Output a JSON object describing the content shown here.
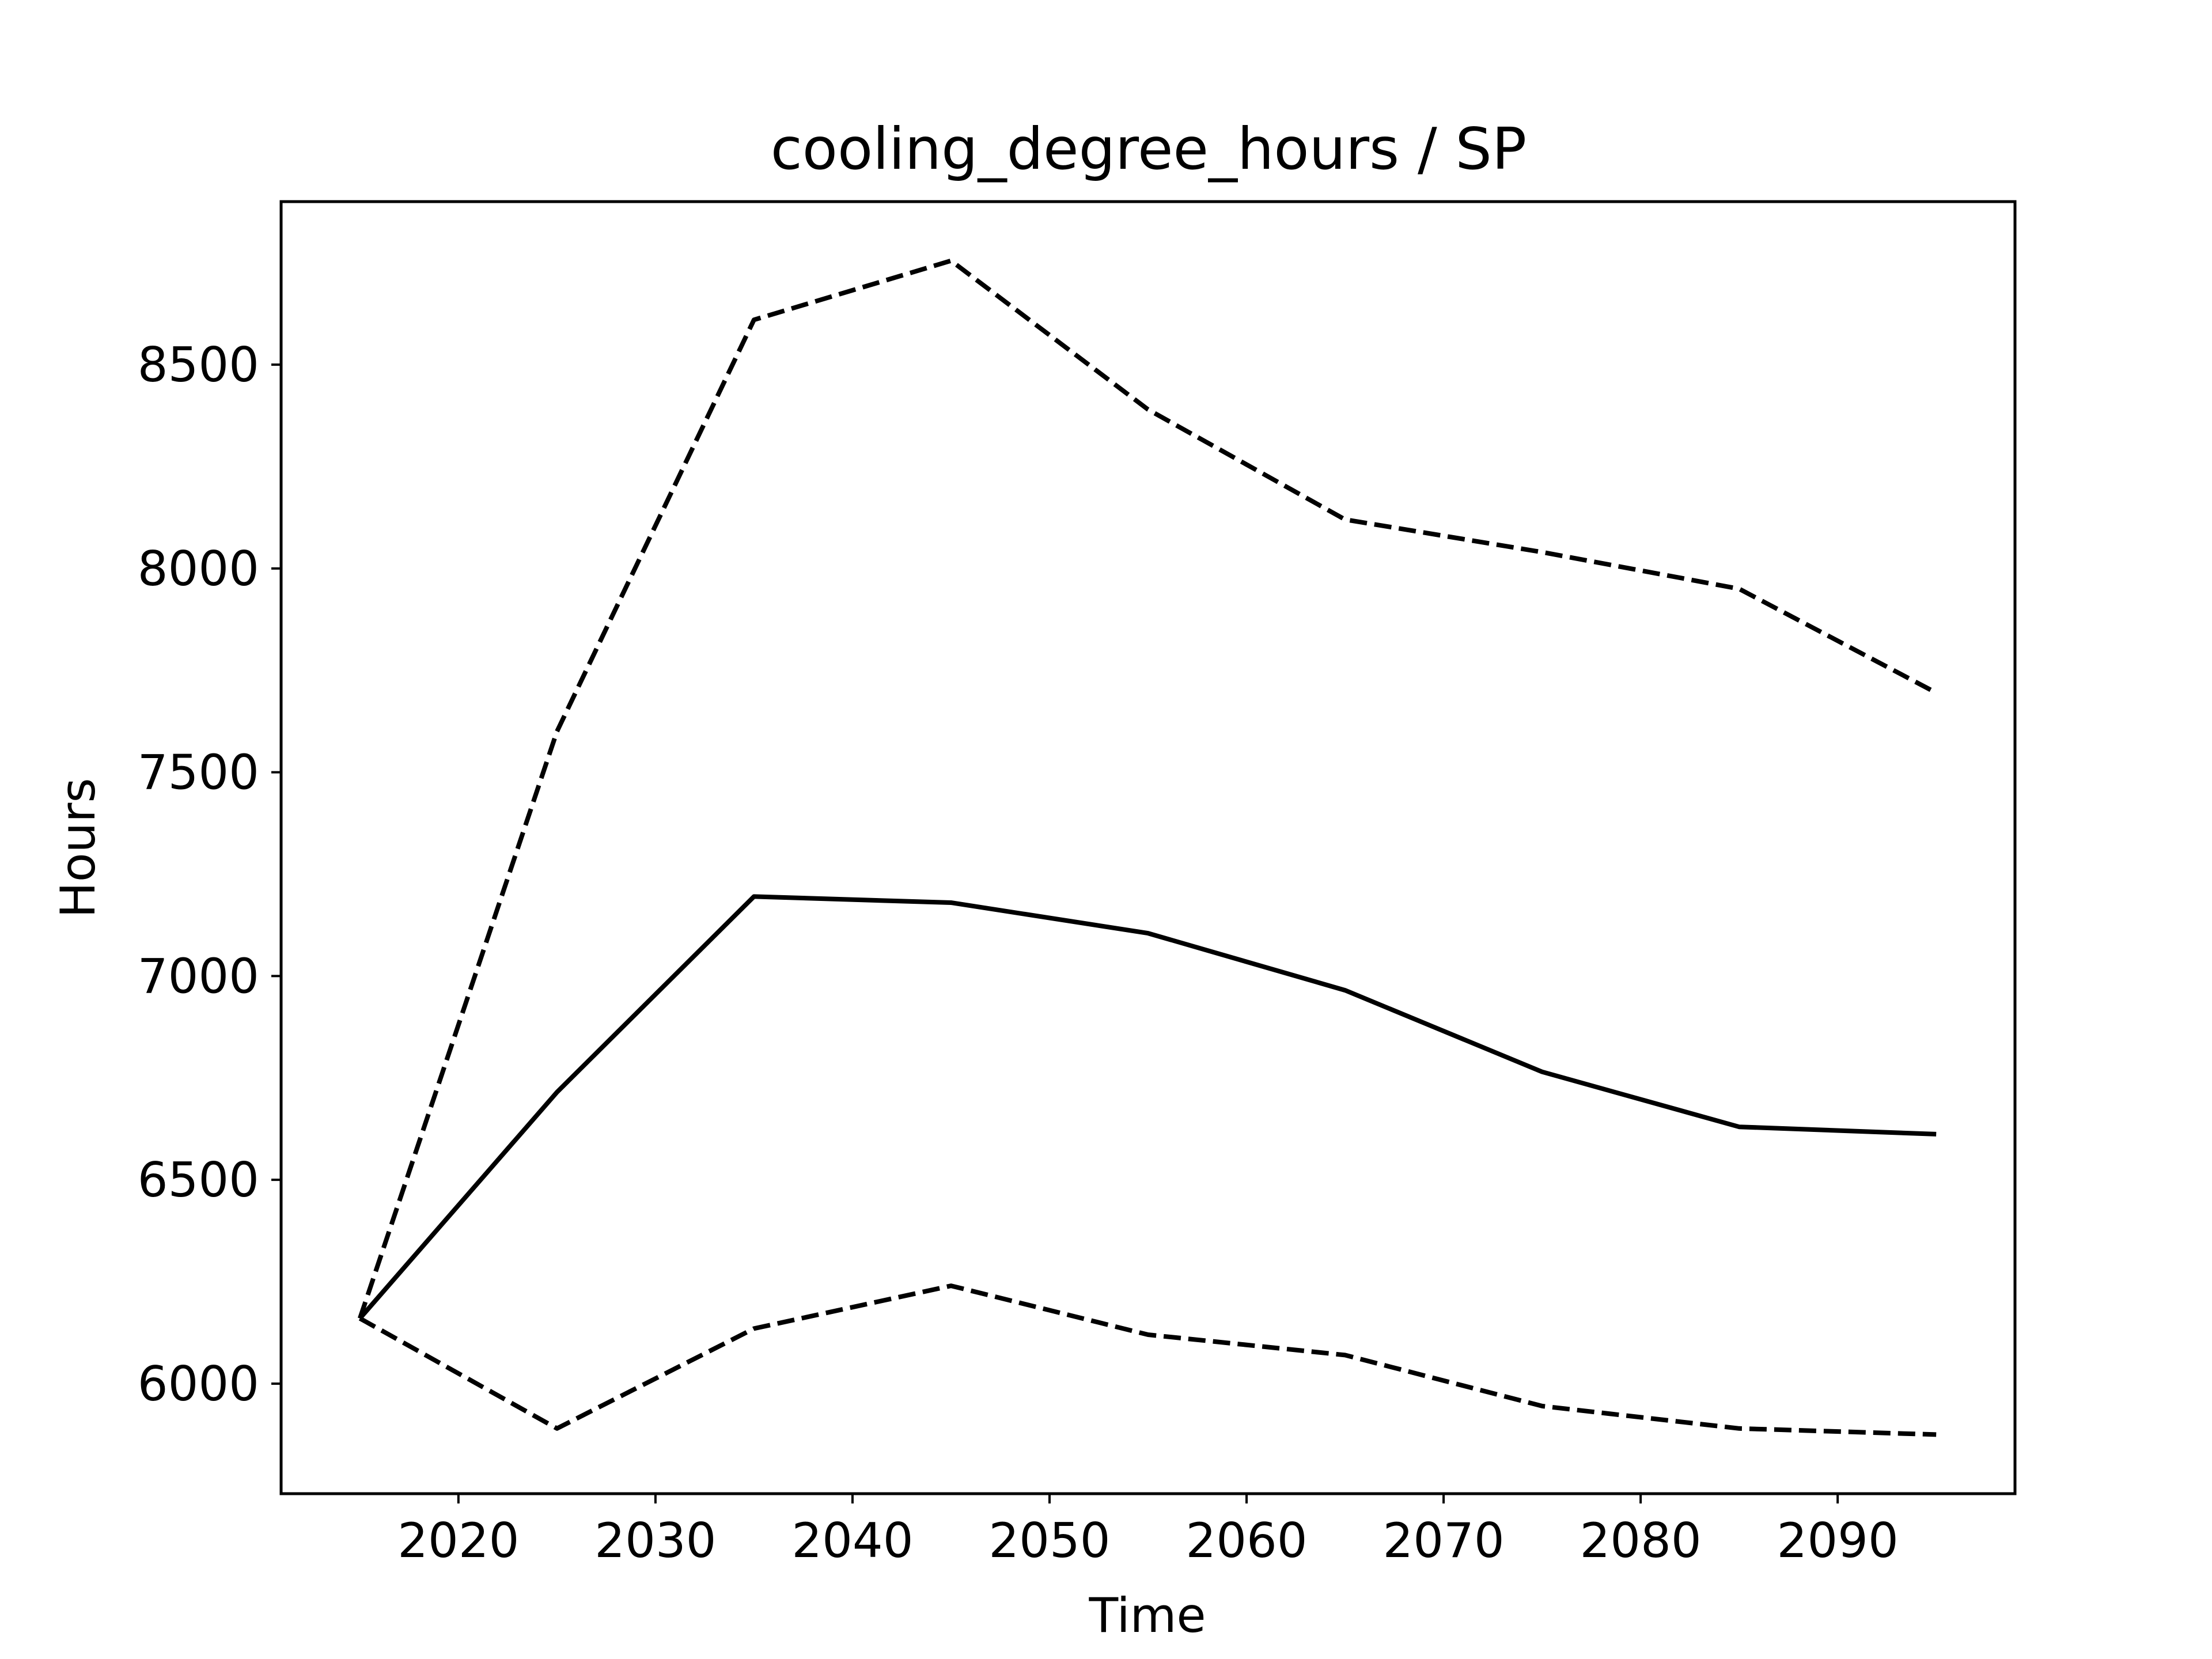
{
  "chart_data": {
    "type": "line",
    "title": "cooling_degree_hours / SP",
    "xlabel": "Time",
    "ylabel": "Hours",
    "x": [
      2015,
      2025,
      2035,
      2045,
      2055,
      2065,
      2075,
      2085,
      2095
    ],
    "xlim": [
      2011.0,
      2099.0
    ],
    "ylim": [
      5730,
      8900
    ],
    "xticks": [
      2020,
      2030,
      2040,
      2050,
      2060,
      2070,
      2080,
      2090
    ],
    "yticks": [
      6000,
      6500,
      7000,
      7500,
      8000,
      8500
    ],
    "grid": false,
    "legend": "none",
    "series": [
      {
        "style": "solid",
        "color": "#000000",
        "values": [
          6160,
          6715,
          7195,
          7180,
          7105,
          6965,
          6765,
          6630,
          6612
        ]
      },
      {
        "style": "dashed",
        "color": "#000000",
        "values": [
          6160,
          7600,
          8610,
          8755,
          8390,
          8120,
          8040,
          7950,
          7695
        ]
      },
      {
        "style": "dashed",
        "color": "#000000",
        "values": [
          6160,
          5890,
          6135,
          6240,
          6120,
          6070,
          5945,
          5890,
          5875
        ]
      }
    ]
  }
}
